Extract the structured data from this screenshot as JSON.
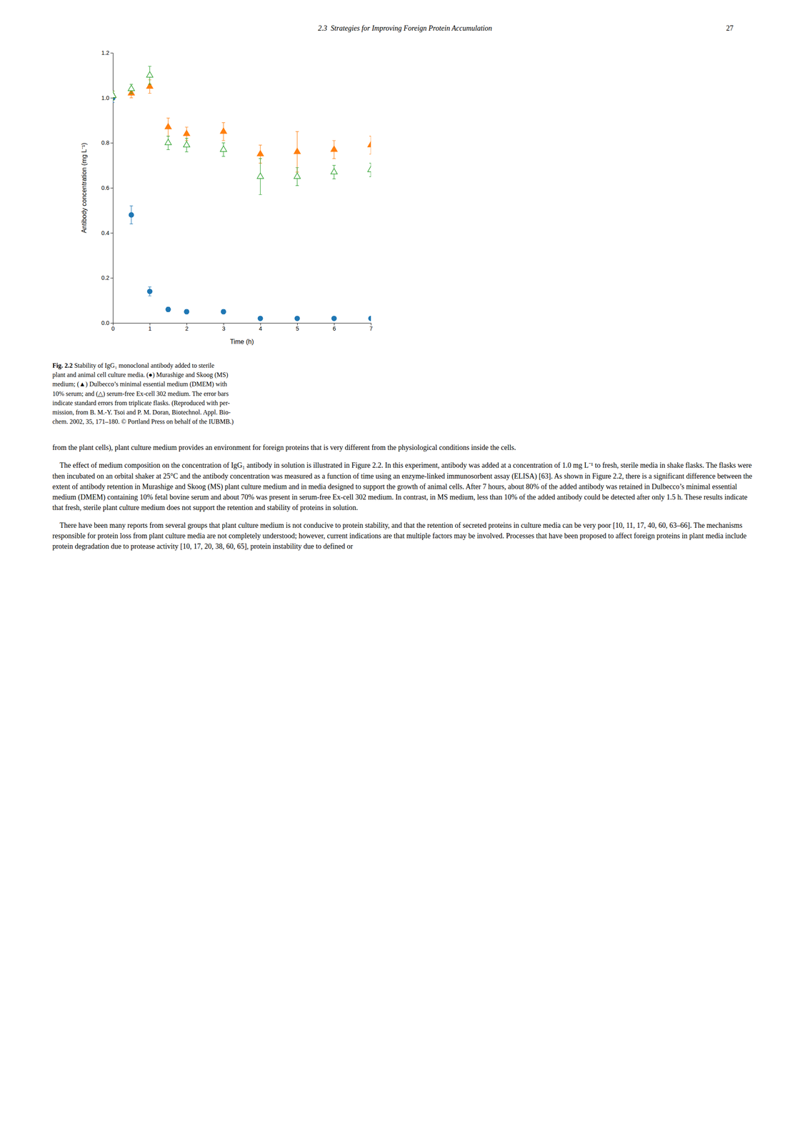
{
  "page": {
    "header": "2.3  Strategies for Improving Foreign Protein Accumulation",
    "page_number": "27",
    "caption_bold": "Fig. 2.2",
    "caption_lines": [
      "Stability of IgG₁ monoclonal antibody added to sterile",
      "plant and animal cell culture media. (●) Murashige and Skoog (MS)",
      "medium; (▲) Dulbecco’s minimal essential medium (DMEM) with",
      "10% serum; and (△) serum-free Ex-cell 302 medium. The error bars",
      "indicate standard errors from triplicate flasks. (Reproduced with per-",
      "mission, from B. M.-Y. Tsoi and P. M. Doran, Biotechnol. Appl. Bio-",
      "chem. 2002, 35, 171–180. © Portland Press on behalf of the IUBMB.)"
    ],
    "body": [
      "from the plant cells), plant culture medium provides an environment for foreign proteins that is very different from the physiological conditions inside the cells.",
      "    The effect of medium composition on the concentration of IgG₁ antibody in solution is illustrated in Figure 2.2. In this experiment, antibody was added at a concentration of 1.0 mg L⁻¹ to fresh, sterile media in shake flasks. The flasks were then incubated on an orbital shaker at 25°C and the antibody concentration was measured as a function of time using an enzyme-linked immunosorbent assay (ELISA) [63]. As shown in Figure 2.2, there is a significant difference between the extent of antibody retention in Murashige and Skoog (MS) plant culture medium and in media designed to support the growth of animal cells. After 7 hours, about 80% of the added antibody was retained in Dulbecco’s minimal essential medium (DMEM) containing 10% fetal bovine serum and about 70% was present in serum-free Ex-cell 302 medium. In contrast, in MS medium, less than 10% of the added antibody could be detected after only 1.5 h. These results indicate that fresh, sterile plant culture medium does not support the retention and stability of proteins in solution.",
      "    There have been many reports from several groups that plant culture medium is not conducive to protein stability, and that the retention of secreted proteins in culture media can be very poor [10, 11, 17, 40, 60, 63–66]. The mechanisms responsible for protein loss from plant culture media are not completely understood; however, current indications are that multiple factors may be involved. Processes that have been proposed to affect foreign proteins in plant media include protein degradation due to protease activity [10, 17, 20, 38, 60, 65], protein instability due to defined or"
    ]
  },
  "chart_data": {
    "type": "scatter",
    "xlabel": "Time (h)",
    "ylabel": "Antibody concentration (mg L⁻¹)",
    "x": [
      0,
      0.5,
      1.0,
      1.5,
      2.0,
      3.0,
      4.0,
      5.0,
      6.0,
      7.0
    ],
    "xlim": [
      0,
      7
    ],
    "ylim": [
      0.0,
      1.2
    ],
    "xticks": [
      0,
      1,
      2,
      3,
      4,
      5,
      6,
      7
    ],
    "yticks": [
      {
        "value": 0.0,
        "label": "0.0"
      },
      0.2,
      0.4,
      0.6,
      0.8,
      {
        "value": 1.0,
        "label": "1.0"
      },
      1.2
    ],
    "grid": false,
    "series": [
      {
        "marker": "circle",
        "values": [
          1.0,
          0.48,
          0.14,
          0.06,
          0.05,
          0.05,
          0.02,
          0.02,
          0.02,
          0.02
        ],
        "errors": [
          0.02,
          0.04,
          0.02,
          0.01,
          0.01,
          0.01,
          0.005,
          0.005,
          0.005,
          0.005
        ]
      },
      {
        "marker": "triangle",
        "values": [
          1.01,
          1.02,
          1.05,
          0.87,
          0.84,
          0.85,
          0.75,
          0.76,
          0.77,
          0.79
        ],
        "errors": [
          0.02,
          0.02,
          0.03,
          0.04,
          0.03,
          0.04,
          0.04,
          0.09,
          0.04,
          0.04
        ]
      },
      {
        "marker": "triangle-open",
        "values": [
          1.01,
          1.04,
          1.1,
          0.8,
          0.79,
          0.77,
          0.65,
          0.65,
          0.67,
          0.68
        ],
        "errors": [
          0.02,
          0.02,
          0.04,
          0.03,
          0.03,
          0.03,
          0.08,
          0.04,
          0.03,
          0.03
        ]
      }
    ]
  }
}
